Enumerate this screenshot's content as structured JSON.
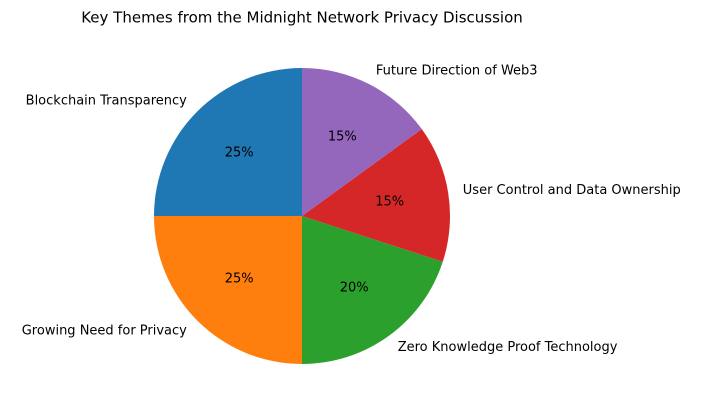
{
  "chart_data": {
    "type": "pie",
    "title": "Key Themes from the Midnight Network Privacy Discussion",
    "categories": [
      "Blockchain Transparency",
      "Growing Need for Privacy",
      "Zero Knowledge Proof Technology",
      "User Control and Data Ownership",
      "Future Direction of Web3"
    ],
    "values": [
      25,
      25,
      20,
      15,
      15
    ],
    "value_labels": [
      "25%",
      "25%",
      "20%",
      "15%",
      "15%"
    ],
    "colors": [
      "#1f77b4",
      "#ff7f0e",
      "#2ca02c",
      "#d62728",
      "#9467bd"
    ]
  }
}
